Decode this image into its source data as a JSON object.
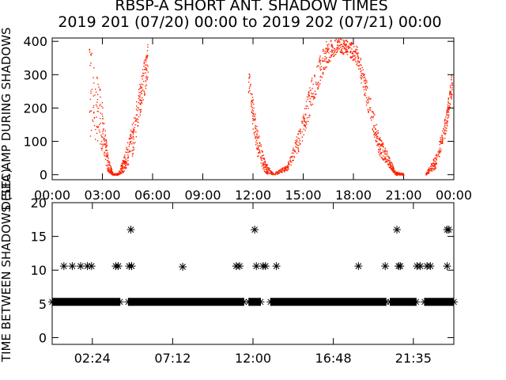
{
  "chart_data": [
    {
      "type": "scatter",
      "title": "RBSP-A SHORT ANT. SHADOW TIMES",
      "subtitle": "2019 201 (07/20) 00:00 to 2019 202 (07/21) 00:00",
      "ylabel": "DELTA AMP DURING SHADOWS",
      "xlim": [
        0,
        24
      ],
      "ylim": [
        -15,
        410
      ],
      "x_ticks": [
        "00:00",
        "03:00",
        "06:00",
        "09:00",
        "12:00",
        "15:00",
        "18:00",
        "21:00",
        "00:00"
      ],
      "y_ticks": [
        "0",
        "100",
        "200",
        "300",
        "400"
      ],
      "marker_color": "#ff2000",
      "series_envelope": {
        "x_hours": [
          0.3,
          0.8,
          1.5,
          2.2,
          2.9,
          3.3,
          3.6,
          3.9,
          4.3,
          4.8,
          5.3,
          5.7,
          6.0,
          7.0,
          8.0,
          9.0,
          10.0,
          11.0,
          11.7,
          12.2,
          12.7,
          13.2,
          14.0,
          14.8,
          15.5,
          16.3,
          17.0,
          17.6,
          18.2,
          18.8,
          19.5,
          20.0,
          20.5,
          21.0,
          21.6,
          22.3,
          22.9,
          23.5,
          23.9
        ],
        "y_upper": [
          null,
          null,
          null,
          400,
          260,
          60,
          5,
          5,
          60,
          170,
          300,
          400,
          null,
          null,
          null,
          null,
          null,
          null,
          330,
          150,
          40,
          5,
          30,
          150,
          300,
          400,
          410,
          405,
          390,
          280,
          120,
          70,
          10,
          5,
          null,
          5,
          60,
          180,
          320
        ],
        "y_lower": [
          null,
          null,
          null,
          120,
          80,
          10,
          0,
          0,
          10,
          60,
          200,
          280,
          null,
          null,
          null,
          null,
          null,
          null,
          240,
          60,
          5,
          0,
          10,
          80,
          200,
          320,
          360,
          360,
          330,
          200,
          60,
          30,
          0,
          0,
          null,
          0,
          20,
          120,
          250
        ]
      }
    },
    {
      "type": "scatter",
      "ylabel": "TIME BETWEEN SHADOWS (SEC)",
      "xlim": [
        0,
        24
      ],
      "ylim": [
        -1,
        20
      ],
      "x_ticks": [
        "02:24",
        "07:12",
        "12:00",
        "16:48",
        "21:35"
      ],
      "x_tick_hours": [
        2.4,
        7.2,
        12.0,
        16.8,
        21.583
      ],
      "y_ticks": [
        "0",
        "5",
        "10",
        "15",
        "20"
      ],
      "marker": "asterisk",
      "baseline_value": 5.3,
      "baseline_segments": [
        [
          0,
          4.05
        ],
        [
          4.55,
          11.45
        ],
        [
          11.75,
          12.45
        ],
        [
          13.05,
          19.95
        ],
        [
          20.2,
          21.75
        ],
        [
          22.25,
          24
        ]
      ],
      "points": [
        [
          0.7,
          10.6
        ],
        [
          1.2,
          10.6
        ],
        [
          1.7,
          10.6
        ],
        [
          2.1,
          10.6
        ],
        [
          2.35,
          10.6
        ],
        [
          3.8,
          10.6
        ],
        [
          3.95,
          10.6
        ],
        [
          4.6,
          10.6
        ],
        [
          4.75,
          10.6
        ],
        [
          4.7,
          16
        ],
        [
          7.8,
          10.5
        ],
        [
          11.0,
          10.6
        ],
        [
          11.2,
          10.6
        ],
        [
          12.1,
          16
        ],
        [
          12.2,
          10.6
        ],
        [
          12.6,
          10.6
        ],
        [
          12.75,
          10.6
        ],
        [
          13.4,
          10.6
        ],
        [
          18.3,
          10.6
        ],
        [
          19.9,
          10.6
        ],
        [
          20.6,
          16
        ],
        [
          20.7,
          10.6
        ],
        [
          20.8,
          10.6
        ],
        [
          21.8,
          10.6
        ],
        [
          22.0,
          10.6
        ],
        [
          22.4,
          10.6
        ],
        [
          22.6,
          10.6
        ],
        [
          23.6,
          16
        ],
        [
          23.7,
          16
        ],
        [
          23.6,
          10.6
        ]
      ]
    }
  ]
}
